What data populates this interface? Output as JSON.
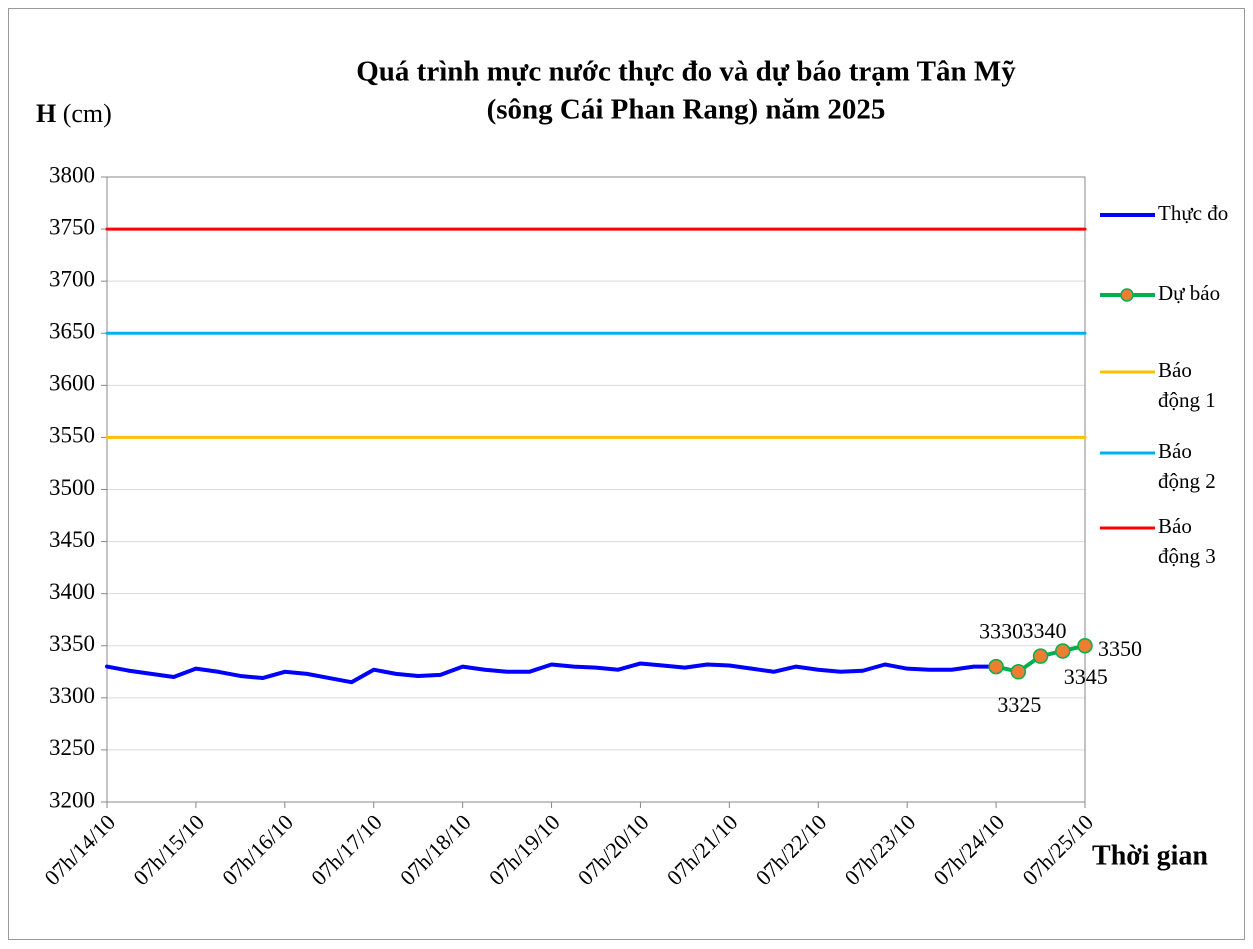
{
  "chart_data": {
    "type": "line",
    "title": "Quá trình mực nước thực đo và dự báo trạm Tân Mỹ",
    "subtitle": "(sông Cái Phan Rang) năm 2025",
    "y_label": "H (cm)",
    "x_label": "Thời gian",
    "categories": [
      "07h/14/10",
      null,
      null,
      null,
      "07h/15/10",
      null,
      null,
      null,
      "07h/16/10",
      null,
      null,
      null,
      "07h/17/10",
      null,
      null,
      null,
      "07h/18/10",
      null,
      null,
      null,
      "07h/19/10",
      null,
      null,
      null,
      "07h/20/10",
      null,
      null,
      null,
      "07h/21/10",
      null,
      null,
      null,
      "07h/22/10",
      null,
      null,
      null,
      "07h/23/10",
      null,
      null,
      null,
      "07h/24/10",
      null,
      null,
      null,
      "07h/25/10"
    ],
    "series": [
      {
        "name": "Thực đo",
        "color": "#0000ff",
        "width": 4,
        "marker": false,
        "values": [
          3330,
          3326,
          3323,
          3320,
          3328,
          3325,
          3321,
          3319,
          3325,
          3323,
          3319,
          3315,
          3327,
          3323,
          3321,
          3322,
          3330,
          3327,
          3325,
          3325,
          3332,
          3330,
          3329,
          3327,
          3333,
          3331,
          3329,
          3332,
          3331,
          3328,
          3325,
          3330,
          3327,
          3325,
          3326,
          3332,
          3328,
          3327,
          3327,
          3330,
          3330,
          null,
          null,
          null,
          null
        ]
      },
      {
        "name": "Dự báo",
        "color": "#00b050",
        "marker_color": "#ed7d31",
        "width": 4,
        "marker": true,
        "data_labels": true,
        "values": [
          null,
          null,
          null,
          null,
          null,
          null,
          null,
          null,
          null,
          null,
          null,
          null,
          null,
          null,
          null,
          null,
          null,
          null,
          null,
          null,
          null,
          null,
          null,
          null,
          null,
          null,
          null,
          null,
          null,
          null,
          null,
          null,
          null,
          null,
          null,
          null,
          null,
          null,
          null,
          null,
          3330,
          3325,
          3340,
          3345,
          3350
        ]
      },
      {
        "name": "Báo động 1",
        "color": "#ffc000",
        "width": 3,
        "marker": false,
        "values": [
          3550,
          3550,
          3550,
          3550,
          3550,
          3550,
          3550,
          3550,
          3550,
          3550,
          3550,
          3550,
          3550,
          3550,
          3550,
          3550,
          3550,
          3550,
          3550,
          3550,
          3550,
          3550,
          3550,
          3550,
          3550,
          3550,
          3550,
          3550,
          3550,
          3550,
          3550,
          3550,
          3550,
          3550,
          3550,
          3550,
          3550,
          3550,
          3550,
          3550,
          3550,
          3550,
          3550,
          3550,
          3550
        ]
      },
      {
        "name": "Báo động 2",
        "color": "#00b0f0",
        "width": 3,
        "marker": false,
        "values": [
          3650,
          3650,
          3650,
          3650,
          3650,
          3650,
          3650,
          3650,
          3650,
          3650,
          3650,
          3650,
          3650,
          3650,
          3650,
          3650,
          3650,
          3650,
          3650,
          3650,
          3650,
          3650,
          3650,
          3650,
          3650,
          3650,
          3650,
          3650,
          3650,
          3650,
          3650,
          3650,
          3650,
          3650,
          3650,
          3650,
          3650,
          3650,
          3650,
          3650,
          3650,
          3650,
          3650,
          3650,
          3650
        ]
      },
      {
        "name": "Báo động 3",
        "color": "#ff0000",
        "width": 3,
        "marker": false,
        "values": [
          3750,
          3750,
          3750,
          3750,
          3750,
          3750,
          3750,
          3750,
          3750,
          3750,
          3750,
          3750,
          3750,
          3750,
          3750,
          3750,
          3750,
          3750,
          3750,
          3750,
          3750,
          3750,
          3750,
          3750,
          3750,
          3750,
          3750,
          3750,
          3750,
          3750,
          3750,
          3750,
          3750,
          3750,
          3750,
          3750,
          3750,
          3750,
          3750,
          3750,
          3750,
          3750,
          3750,
          3750,
          3750
        ]
      }
    ],
    "ylim": [
      3200,
      3800
    ],
    "yticks": [
      3200,
      3250,
      3300,
      3350,
      3400,
      3450,
      3500,
      3550,
      3600,
      3650,
      3700,
      3750,
      3800
    ],
    "grid": true,
    "legend": "right"
  }
}
